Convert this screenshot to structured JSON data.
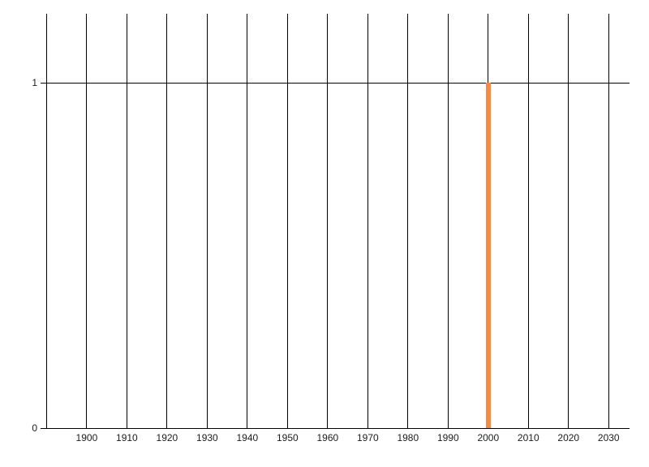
{
  "chart_data": {
    "type": "bar",
    "title": "",
    "xlabel": "",
    "ylabel": "",
    "xlim": [
      1888.5,
      2035.2
    ],
    "ylim": [
      0,
      1.2
    ],
    "grid": "vertical-decade-lines",
    "legend": "none",
    "x_gridline_years": [
      1890,
      1900,
      1910,
      1920,
      1930,
      1940,
      1950,
      1960,
      1970,
      1980,
      1990,
      2000,
      2010,
      2020,
      2030
    ],
    "x_ticks": [
      {
        "year": 1900,
        "label": "1900"
      },
      {
        "year": 1910,
        "label": "1910"
      },
      {
        "year": 1920,
        "label": "1920"
      },
      {
        "year": 1930,
        "label": "1930"
      },
      {
        "year": 1940,
        "label": "1940"
      },
      {
        "year": 1950,
        "label": "1950"
      },
      {
        "year": 1960,
        "label": "1960"
      },
      {
        "year": 1970,
        "label": "1970"
      },
      {
        "year": 1980,
        "label": "1980"
      },
      {
        "year": 1990,
        "label": "1990"
      },
      {
        "year": 2000,
        "label": "2000"
      },
      {
        "year": 2010,
        "label": "2010"
      },
      {
        "year": 2020,
        "label": "2020"
      },
      {
        "year": 2030,
        "label": "2030"
      }
    ],
    "y_ticks": [
      {
        "value": 0,
        "label": "0"
      },
      {
        "value": 1,
        "label": "1"
      }
    ],
    "bars": [
      {
        "x": 2000,
        "y": 1,
        "color": "#f98a44"
      }
    ]
  },
  "colors": {
    "background": "#ffffff",
    "gridline": "#000000",
    "axis": "#000000",
    "tick_text": "#1c1c1c",
    "bar": "#f98a44"
  }
}
